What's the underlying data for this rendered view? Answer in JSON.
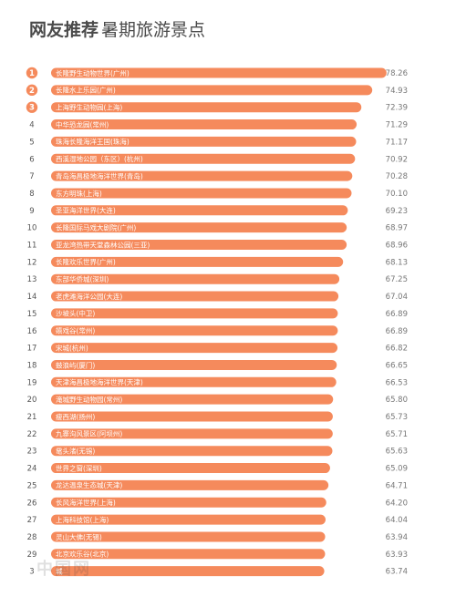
{
  "header": {
    "title_bold": "网友推荐",
    "title_rest": "暑期旅游景点"
  },
  "colors": {
    "bar": "#f58a5c",
    "rank_badge": "#f58a5c"
  },
  "watermark": "中国网",
  "chart_data": {
    "type": "bar",
    "orientation": "horizontal",
    "title": "网友推荐暑期旅游景点",
    "xlabel": "",
    "ylabel": "",
    "xlim": [
      0,
      80
    ],
    "grid": false,
    "legend": "none",
    "categories": [
      "长隆野生动物世界(广州)",
      "长隆水上乐园(广州)",
      "上海野生动物园(上海)",
      "中华恐龙园(常州)",
      "珠海长隆海洋王国(珠海)",
      "西溪湿地公园（东区）(杭州)",
      "青岛海昌极地海洋世界(青岛)",
      "东方明珠(上海)",
      "圣亚海洋世界(大连)",
      "长隆国际马戏大剧院(广州)",
      "亚龙湾热带天堂森林公园(三亚)",
      "长隆欢乐世界(广州)",
      "东部华侨城(深圳)",
      "老虎滩海洋公园(大连)",
      "沙坡头(中卫)",
      "嬉戏谷(常州)",
      "宋城(杭州)",
      "鼓浪屿(厦门)",
      "天津海昌极地海洋世界(天津)",
      "淹城野生动物园(常州)",
      "瘦西湖(扬州)",
      "九寨沟风景区(阿坝州)",
      "鼋头渚(无锡)",
      "世界之窗(深圳)",
      "龙达温泉生态城(天津)",
      "长风海洋世界(上海)",
      "上海科技馆(上海)",
      "灵山大佛(无锡)",
      "北京欢乐谷(北京)",
      "城"
    ],
    "ranks": [
      "1",
      "2",
      "3",
      "4",
      "5",
      "6",
      "7",
      "8",
      "9",
      "10",
      "11",
      "12",
      "13",
      "14",
      "15",
      "16",
      "17",
      "18",
      "19",
      "20",
      "21",
      "22",
      "23",
      "24",
      "25",
      "26",
      "27",
      "28",
      "29",
      "3"
    ],
    "values": [
      78.26,
      74.93,
      72.39,
      71.29,
      71.17,
      70.92,
      70.28,
      70.1,
      69.23,
      68.97,
      68.96,
      68.13,
      67.25,
      67.04,
      66.89,
      66.89,
      66.82,
      66.65,
      66.53,
      65.8,
      65.73,
      65.71,
      65.63,
      65.09,
      64.71,
      64.2,
      64.04,
      63.94,
      63.93,
      63.74
    ],
    "value_labels": [
      "78.26",
      "74.93",
      "72.39",
      "71.29",
      "71.17",
      "70.92",
      "70.28",
      "70.10",
      "69.23",
      "68.97",
      "68.96",
      "68.13",
      "67.25",
      "67.04",
      "66.89",
      "66.89",
      "66.82",
      "66.65",
      "66.53",
      "65.80",
      "65.73",
      "65.71",
      "65.63",
      "65.09",
      "64.71",
      "64.20",
      "64.04",
      "63.94",
      "63.93",
      "63.74"
    ]
  }
}
